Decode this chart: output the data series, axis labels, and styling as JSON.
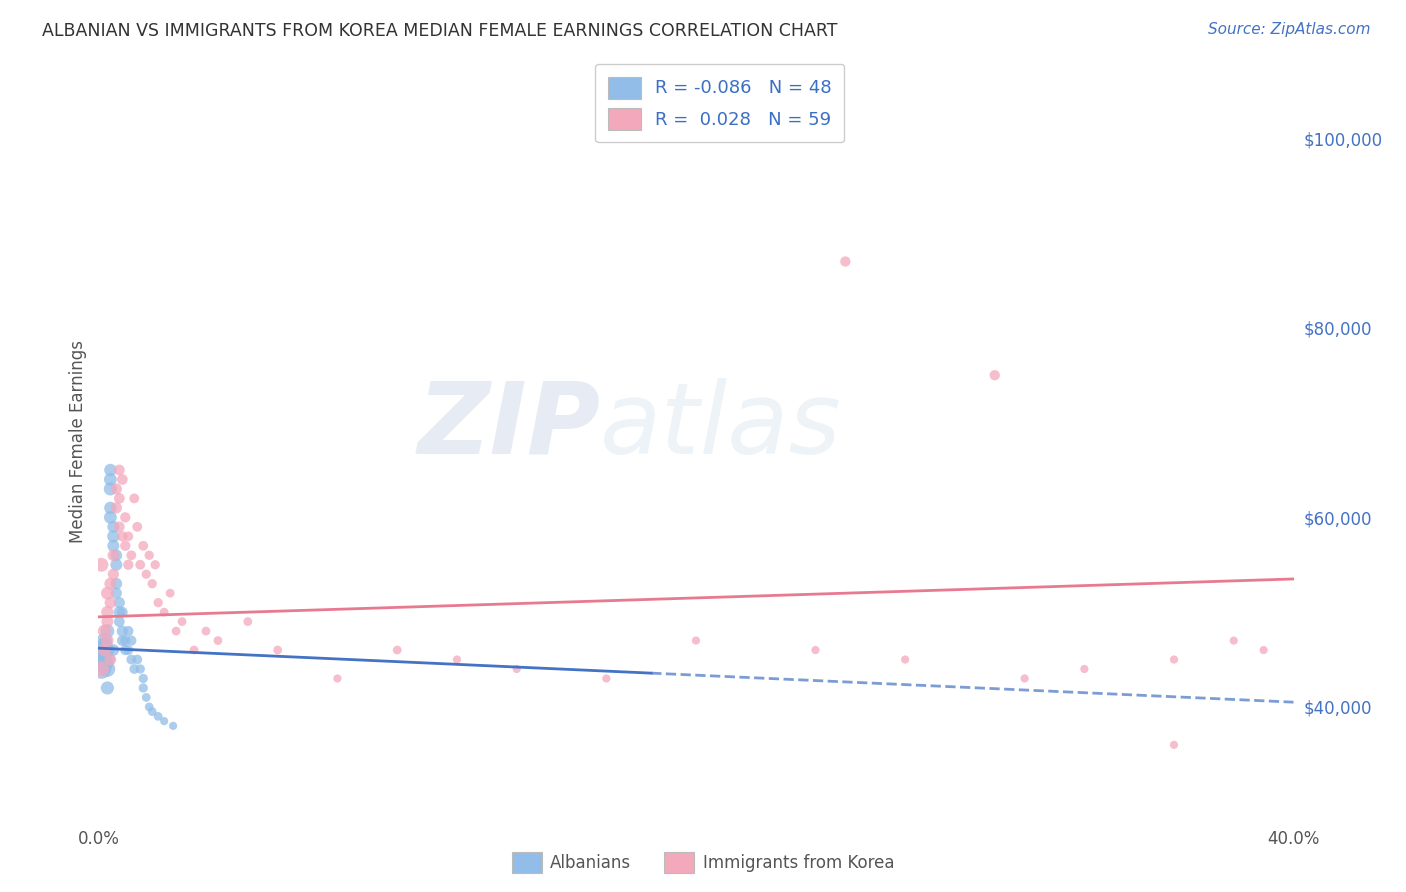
{
  "title": "ALBANIAN VS IMMIGRANTS FROM KOREA MEDIAN FEMALE EARNINGS CORRELATION CHART",
  "source": "Source: ZipAtlas.com",
  "ylabel": "Median Female Earnings",
  "right_yticks": [
    "$40,000",
    "$60,000",
    "$80,000",
    "$100,000"
  ],
  "right_ytick_vals": [
    40000,
    60000,
    80000,
    100000
  ],
  "ylim": [
    28000,
    108000
  ],
  "xlim": [
    0.0,
    0.4
  ],
  "legend": {
    "blue_R": "-0.086",
    "blue_N": "48",
    "pink_R": "0.028",
    "pink_N": "59"
  },
  "watermark_zip": "ZIP",
  "watermark_atlas": "atlas",
  "blue_color": "#92BDE8",
  "pink_color": "#F4A8BB",
  "blue_line_color": "#4472C4",
  "pink_line_color": "#E87A90",
  "blue_scatter": {
    "x": [
      0.001,
      0.001,
      0.001,
      0.002,
      0.002,
      0.002,
      0.002,
      0.003,
      0.003,
      0.003,
      0.003,
      0.003,
      0.004,
      0.004,
      0.004,
      0.004,
      0.004,
      0.005,
      0.005,
      0.005,
      0.005,
      0.006,
      0.006,
      0.006,
      0.006,
      0.007,
      0.007,
      0.007,
      0.008,
      0.008,
      0.008,
      0.009,
      0.009,
      0.01,
      0.01,
      0.011,
      0.011,
      0.012,
      0.013,
      0.014,
      0.015,
      0.015,
      0.016,
      0.017,
      0.018,
      0.02,
      0.022,
      0.025
    ],
    "y": [
      44000,
      45000,
      46000,
      44500,
      45500,
      46500,
      47000,
      44000,
      45000,
      46000,
      48000,
      42000,
      63000,
      64000,
      65000,
      60000,
      61000,
      58000,
      59000,
      57000,
      46000,
      55000,
      56000,
      53000,
      52000,
      50000,
      51000,
      49000,
      48000,
      50000,
      47000,
      47000,
      46000,
      48000,
      46000,
      47000,
      45000,
      44000,
      45000,
      44000,
      43000,
      42000,
      41000,
      40000,
      39500,
      39000,
      38500,
      38000
    ],
    "sizes": [
      200,
      180,
      160,
      150,
      140,
      130,
      120,
      130,
      120,
      110,
      100,
      90,
      90,
      85,
      80,
      85,
      80,
      80,
      75,
      75,
      70,
      75,
      70,
      70,
      65,
      70,
      65,
      60,
      65,
      60,
      60,
      55,
      55,
      55,
      50,
      55,
      50,
      50,
      50,
      45,
      45,
      45,
      40,
      40,
      40,
      40,
      35,
      35
    ]
  },
  "pink_scatter": {
    "x": [
      0.001,
      0.001,
      0.002,
      0.002,
      0.003,
      0.003,
      0.003,
      0.003,
      0.004,
      0.004,
      0.004,
      0.005,
      0.005,
      0.006,
      0.006,
      0.007,
      0.007,
      0.007,
      0.008,
      0.008,
      0.009,
      0.009,
      0.01,
      0.01,
      0.011,
      0.012,
      0.013,
      0.014,
      0.015,
      0.016,
      0.017,
      0.018,
      0.019,
      0.02,
      0.022,
      0.024,
      0.026,
      0.028,
      0.032,
      0.036,
      0.04,
      0.05,
      0.06,
      0.08,
      0.1,
      0.12,
      0.14,
      0.17,
      0.2,
      0.24,
      0.27,
      0.31,
      0.33,
      0.36,
      0.38,
      0.39,
      0.36,
      0.3,
      0.25
    ],
    "y": [
      44000,
      55000,
      48000,
      46000,
      52000,
      50000,
      47000,
      49000,
      53000,
      51000,
      45000,
      56000,
      54000,
      63000,
      61000,
      65000,
      62000,
      59000,
      64000,
      58000,
      57000,
      60000,
      55000,
      58000,
      56000,
      62000,
      59000,
      55000,
      57000,
      54000,
      56000,
      53000,
      55000,
      51000,
      50000,
      52000,
      48000,
      49000,
      46000,
      48000,
      47000,
      49000,
      46000,
      43000,
      46000,
      45000,
      44000,
      43000,
      47000,
      46000,
      45000,
      43000,
      44000,
      36000,
      47000,
      46000,
      45000,
      75000,
      87000
    ],
    "sizes": [
      120,
      100,
      90,
      85,
      85,
      80,
      80,
      75,
      75,
      70,
      70,
      70,
      65,
      65,
      65,
      60,
      60,
      60,
      60,
      55,
      55,
      55,
      55,
      50,
      50,
      50,
      50,
      50,
      50,
      45,
      45,
      45,
      45,
      45,
      40,
      40,
      40,
      40,
      40,
      40,
      40,
      40,
      40,
      35,
      40,
      35,
      35,
      35,
      35,
      35,
      35,
      35,
      35,
      35,
      35,
      35,
      35,
      55,
      55
    ]
  },
  "blue_trendline": {
    "x_solid_start": 0.0,
    "x_solid_end": 0.185,
    "x_dashed_start": 0.185,
    "x_dashed_end": 0.4,
    "y_at_0": 46200,
    "y_at_040": 40500
  },
  "pink_trendline": {
    "x_start": 0.0,
    "x_end": 0.4,
    "y_at_0": 49500,
    "y_at_040": 53500
  },
  "background_color": "#ffffff",
  "grid_color": "#cccccc",
  "title_color": "#333333",
  "source_color": "#4472c4",
  "right_label_color": "#4472c4"
}
